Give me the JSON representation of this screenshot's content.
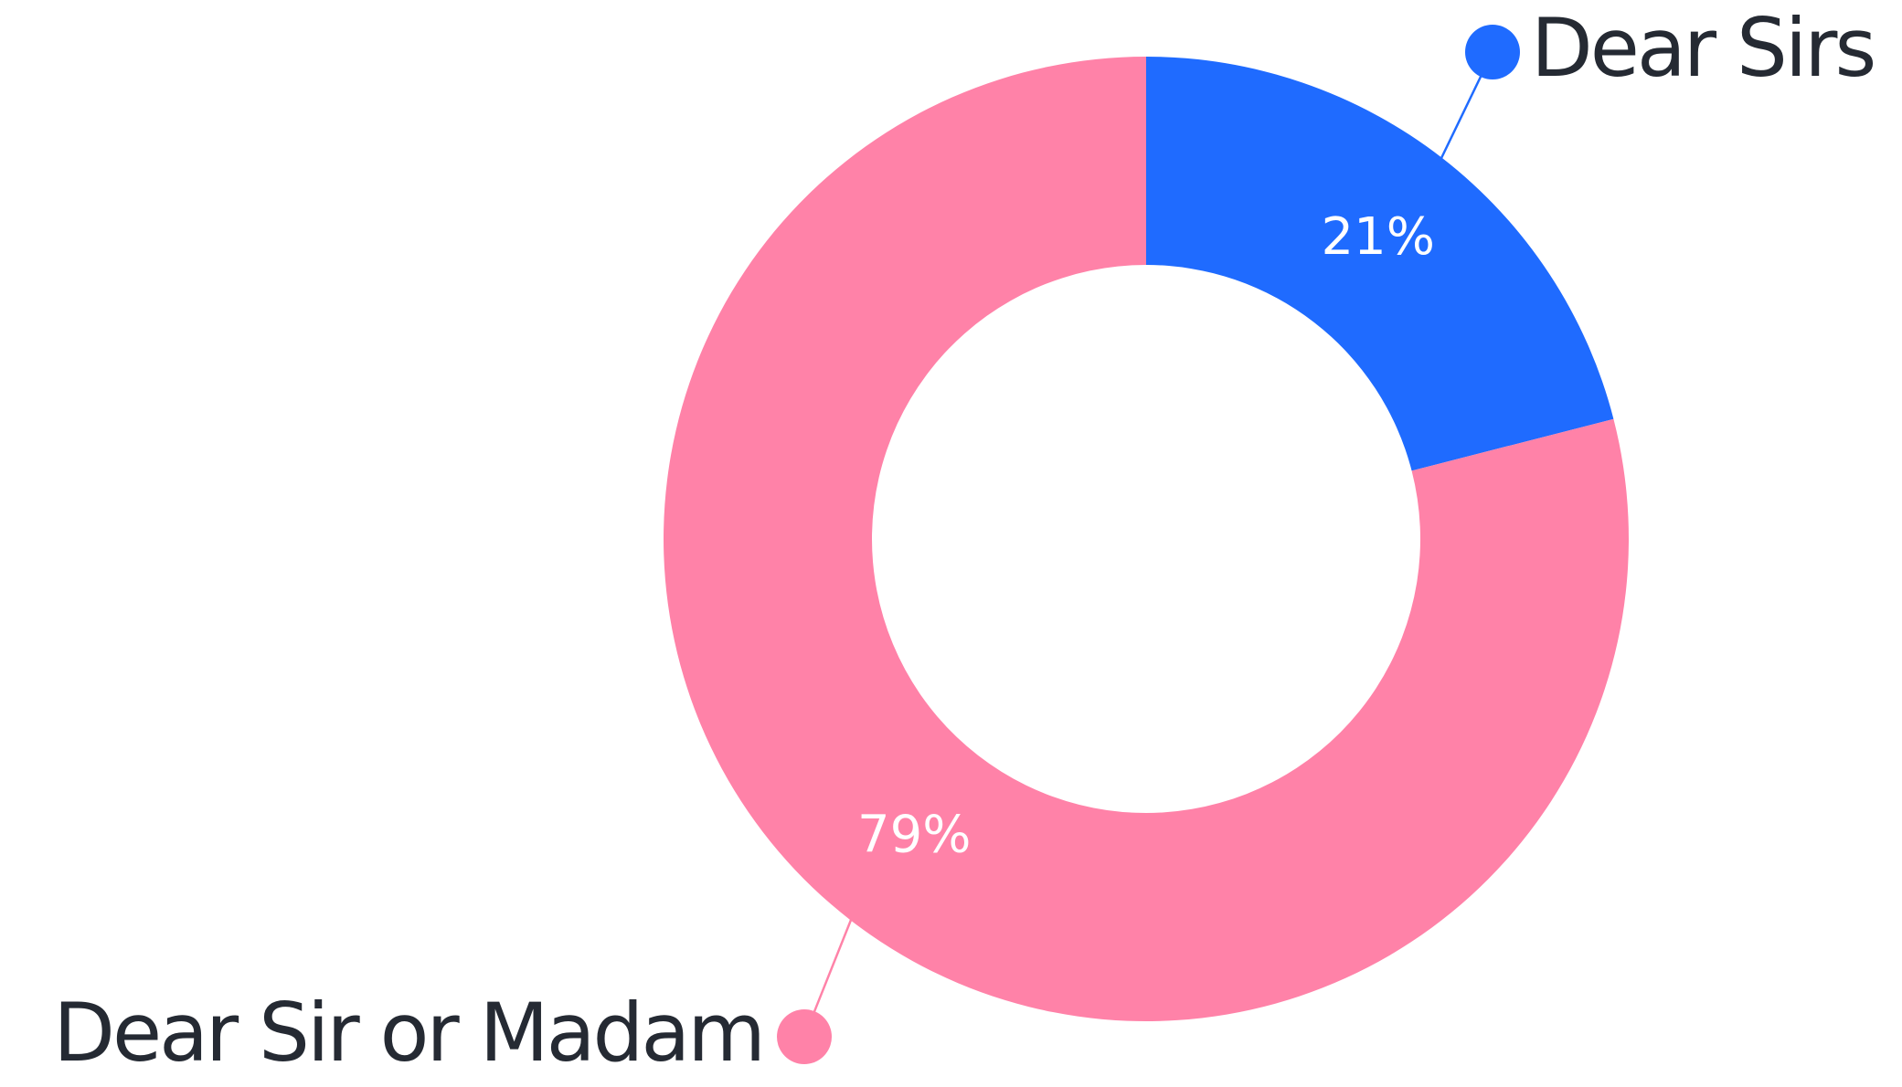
{
  "chart_data": {
    "type": "pie",
    "categories": [
      "Dear Sirs",
      "Dear Sir or Madam"
    ],
    "values": [
      21,
      79
    ],
    "value_labels": [
      "21%",
      "79%"
    ],
    "colors": [
      "#1f6bff",
      "#ff82a8"
    ],
    "donut": true
  }
}
